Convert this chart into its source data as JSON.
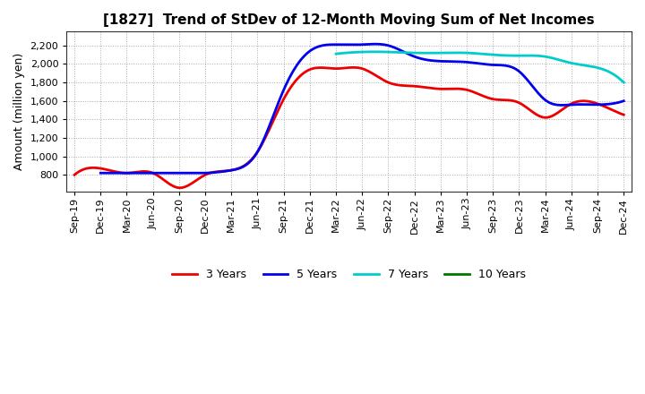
{
  "title": "[1827]  Trend of StDev of 12-Month Moving Sum of Net Incomes",
  "ylabel": "Amount (million yen)",
  "background_color": "#ffffff",
  "grid_color": "#aaaaaa",
  "x_labels": [
    "Sep-19",
    "Dec-19",
    "Mar-20",
    "Jun-20",
    "Sep-20",
    "Dec-20",
    "Mar-21",
    "Jun-21",
    "Sep-21",
    "Dec-21",
    "Mar-22",
    "Jun-22",
    "Sep-22",
    "Dec-22",
    "Mar-23",
    "Jun-23",
    "Sep-23",
    "Dec-23",
    "Mar-24",
    "Jun-24",
    "Sep-24",
    "Dec-24"
  ],
  "ylim": [
    620,
    2350
  ],
  "yticks": [
    800,
    1000,
    1200,
    1400,
    1600,
    1800,
    2000,
    2200
  ],
  "series": {
    "3y": {
      "color": "#ee0000",
      "label": "3 Years",
      "values": [
        800,
        870,
        820,
        820,
        660,
        800,
        850,
        1050,
        1620,
        1940,
        1950,
        1950,
        1800,
        1760,
        1730,
        1720,
        1620,
        1580,
        1420,
        1570,
        1570,
        1450
      ]
    },
    "5y": {
      "color": "#0000ee",
      "label": "5 Years",
      "values": [
        null,
        820,
        820,
        820,
        820,
        820,
        850,
        1050,
        1720,
        2140,
        2210,
        2210,
        2200,
        2080,
        2030,
        2020,
        1990,
        1920,
        1610,
        1560,
        1560,
        1600
      ]
    },
    "7y": {
      "color": "#00cccc",
      "label": "7 Years",
      "values": [
        null,
        null,
        null,
        null,
        null,
        null,
        null,
        null,
        null,
        null,
        2110,
        2130,
        2130,
        2120,
        2120,
        2120,
        2100,
        2090,
        2080,
        2010,
        1960,
        1800
      ]
    },
    "10y": {
      "color": "#007700",
      "label": "10 Years",
      "values": [
        null,
        null,
        null,
        null,
        null,
        null,
        null,
        null,
        null,
        null,
        null,
        null,
        null,
        null,
        null,
        null,
        null,
        null,
        null,
        null,
        null,
        null
      ]
    }
  },
  "legend_entries": [
    "3 Years",
    "5 Years",
    "7 Years",
    "10 Years"
  ],
  "legend_colors": [
    "#ee0000",
    "#0000ee",
    "#00cccc",
    "#007700"
  ]
}
